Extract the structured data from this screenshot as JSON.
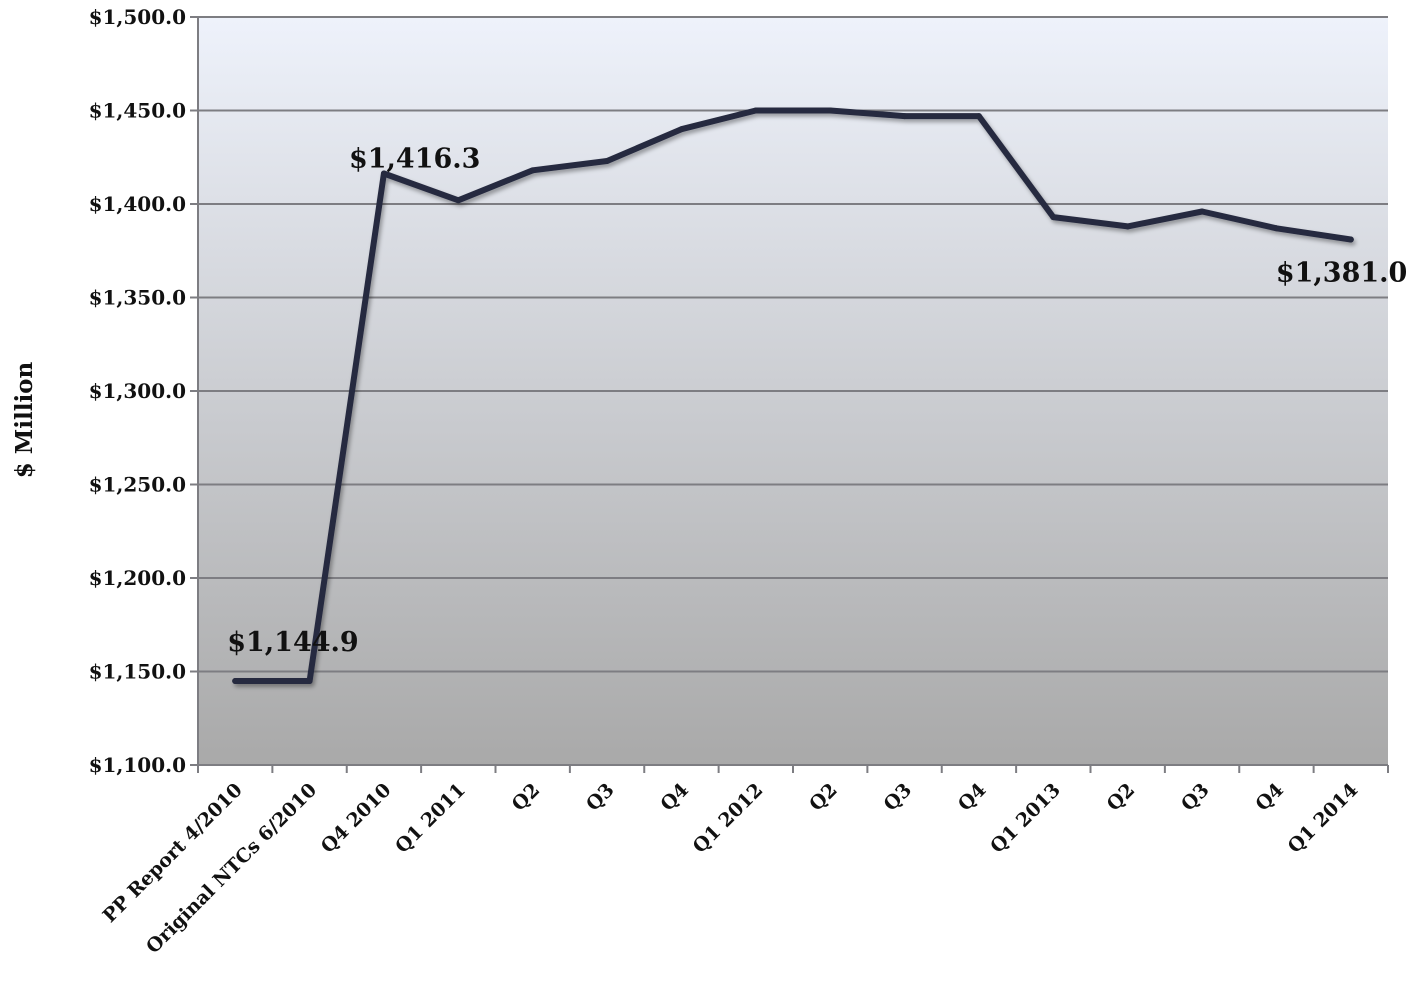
{
  "chart_data": {
    "type": "line",
    "categories": [
      "PP Report 4/2010",
      "Original NTCs 6/2010",
      "Q4 2010",
      "Q1 2011",
      "Q2",
      "Q3",
      "Q4",
      "Q1 2012",
      "Q2",
      "Q3",
      "Q4",
      "Q1 2013",
      "Q2",
      "Q3",
      "Q4",
      "Q1 2014"
    ],
    "series": [
      {
        "values": [
          1144.9,
          1144.9,
          1416.3,
          1402.0,
          1418.0,
          1423.0,
          1440.0,
          1450.0,
          1450.0,
          1447.0,
          1447.0,
          1393.0,
          1388.0,
          1396.0,
          1387.0,
          1381.0
        ]
      }
    ],
    "ylabel": "$ Million",
    "xlabel": "",
    "ylim": [
      1100,
      1500
    ],
    "yticks": [
      "$1,100.0",
      "$1,150.0",
      "$1,200.0",
      "$1,250.0",
      "$1,300.0",
      "$1,350.0",
      "$1,400.0",
      "$1,450.0",
      "$1,500.0"
    ],
    "annotations": [
      {
        "index": 0,
        "text": "$1,144.9"
      },
      {
        "index": 2,
        "text": "$1,416.3"
      },
      {
        "index": 15,
        "text": "$1,381.0"
      }
    ],
    "grid": true,
    "legend": "none",
    "colors": {
      "line": "#262a3f",
      "background_top": "#eef2fb",
      "background_bottom": "#a9a9a9"
    }
  }
}
